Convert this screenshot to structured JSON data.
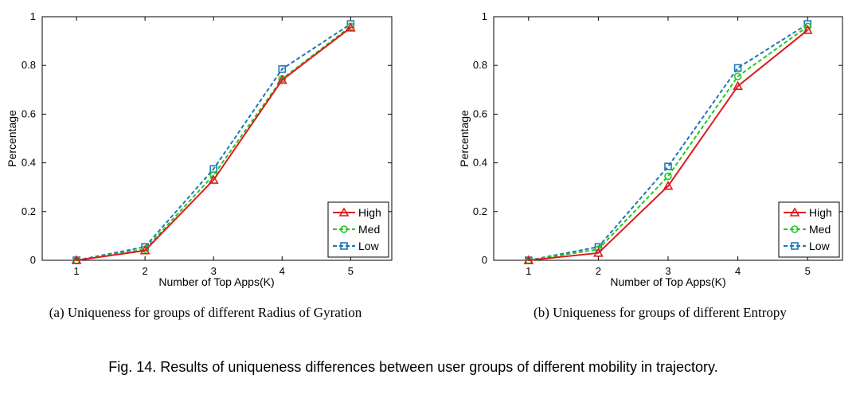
{
  "chart_data": [
    {
      "type": "line",
      "xlabel": "Number of Top Apps(K)",
      "ylabel": "Percentage",
      "x": [
        1,
        2,
        3,
        4,
        5
      ],
      "xticks": [
        "1",
        "2",
        "3",
        "4",
        "5"
      ],
      "yticks": [
        "0",
        "0.2",
        "0.4",
        "0.6",
        "0.8",
        "1"
      ],
      "xlim": [
        0.5,
        5.6
      ],
      "ylim": [
        0,
        1
      ],
      "legend_position": "bottom-right",
      "caption": "(a)  Uniqueness for groups of different Radius of Gyration",
      "series": [
        {
          "name": "High",
          "values": [
            0.0,
            0.04,
            0.33,
            0.74,
            0.955
          ],
          "color": "#e0191c",
          "marker": "triangle",
          "dash": "solid"
        },
        {
          "name": "Med",
          "values": [
            0.0,
            0.045,
            0.35,
            0.745,
            0.96
          ],
          "color": "#1ecb1e",
          "marker": "circle",
          "dash": "dashed"
        },
        {
          "name": "Low",
          "values": [
            0.0,
            0.055,
            0.375,
            0.785,
            0.97
          ],
          "color": "#1f77b4",
          "marker": "square",
          "dash": "dashed"
        }
      ]
    },
    {
      "type": "line",
      "xlabel": "Number of Top Apps(K)",
      "ylabel": "Percentage",
      "x": [
        1,
        2,
        3,
        4,
        5
      ],
      "xticks": [
        "1",
        "2",
        "3",
        "4",
        "5"
      ],
      "yticks": [
        "0",
        "0.2",
        "0.4",
        "0.6",
        "0.8",
        "1"
      ],
      "xlim": [
        0.5,
        5.5
      ],
      "ylim": [
        0,
        1
      ],
      "legend_position": "bottom-right",
      "caption": "(b)  Uniqueness for groups of different Entropy",
      "series": [
        {
          "name": "High",
          "values": [
            0.0,
            0.03,
            0.305,
            0.715,
            0.945
          ],
          "color": "#e0191c",
          "marker": "triangle",
          "dash": "solid"
        },
        {
          "name": "Med",
          "values": [
            0.0,
            0.045,
            0.345,
            0.755,
            0.96
          ],
          "color": "#1ecb1e",
          "marker": "circle",
          "dash": "dashed"
        },
        {
          "name": "Low",
          "values": [
            0.0,
            0.055,
            0.385,
            0.79,
            0.97
          ],
          "color": "#1f77b4",
          "marker": "square",
          "dash": "dashed"
        }
      ]
    }
  ],
  "figure_caption": "Fig. 14.  Results of uniqueness differences between user groups of different mobility in trajectory."
}
